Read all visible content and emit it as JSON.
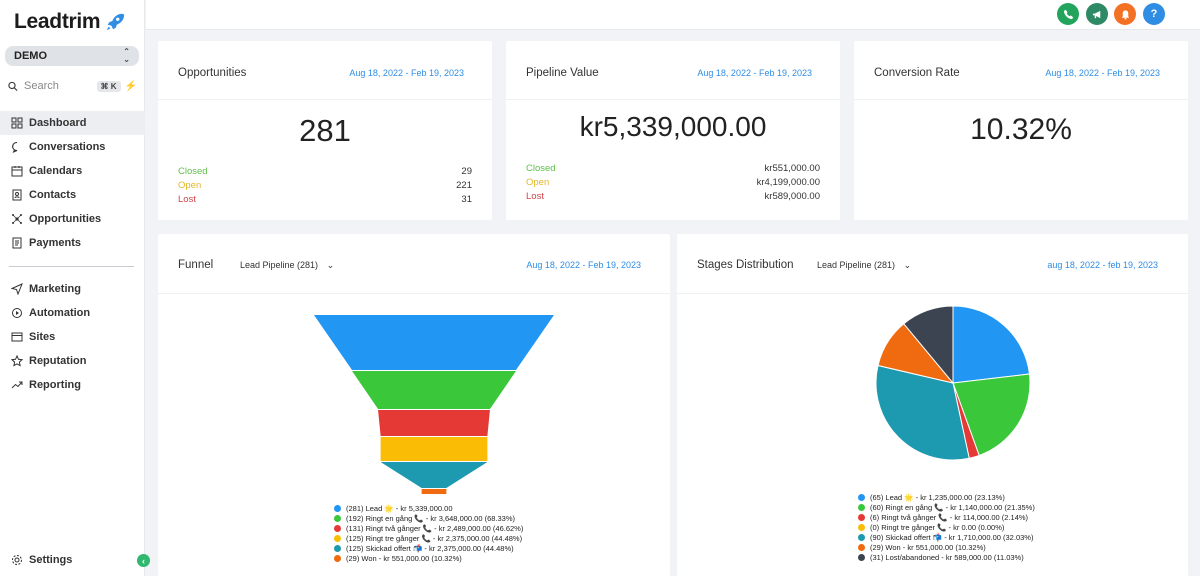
{
  "brand": {
    "name": "Leadtrim"
  },
  "location": {
    "label": "DEMO"
  },
  "search": {
    "placeholder": "Search",
    "shortcut": "⌘ K"
  },
  "sidebar": {
    "items": [
      {
        "label": "Dashboard",
        "icon": "dashboard-icon",
        "active": true
      },
      {
        "label": "Conversations",
        "icon": "chat-icon"
      },
      {
        "label": "Calendars",
        "icon": "calendar-icon"
      },
      {
        "label": "Contacts",
        "icon": "contacts-icon"
      },
      {
        "label": "Opportunities",
        "icon": "opportunities-icon"
      },
      {
        "label": "Payments",
        "icon": "payments-icon"
      }
    ],
    "items2": [
      {
        "label": "Marketing",
        "icon": "send-icon"
      },
      {
        "label": "Automation",
        "icon": "automation-icon"
      },
      {
        "label": "Sites",
        "icon": "sites-icon"
      },
      {
        "label": "Reputation",
        "icon": "star-icon"
      },
      {
        "label": "Reporting",
        "icon": "trend-icon"
      }
    ],
    "settings_label": "Settings"
  },
  "topbar": {
    "buttons": [
      {
        "icon": "phone-icon",
        "color": "#22a45d"
      },
      {
        "icon": "megaphone-icon",
        "color": "#2d8a64"
      },
      {
        "icon": "bell-icon",
        "color": "#f37125"
      },
      {
        "icon": "help-icon",
        "color": "#2f8de4",
        "text": "?"
      }
    ]
  },
  "cards": {
    "opportunities": {
      "title": "Opportunities",
      "date": "Aug 18, 2022 - Feb 19, 2023",
      "total": "281",
      "rows": [
        {
          "label": "Closed",
          "value": "29"
        },
        {
          "label": "Open",
          "value": "221"
        },
        {
          "label": "Lost",
          "value": "31"
        }
      ]
    },
    "pipeline": {
      "title": "Pipeline Value",
      "date": "Aug 18, 2022 - Feb 19, 2023",
      "total": "kr5,339,000.00",
      "rows": [
        {
          "label": "Closed",
          "value": "kr551,000.00"
        },
        {
          "label": "Open",
          "value": "kr4,199,000.00"
        },
        {
          "label": "Lost",
          "value": "kr589,000.00"
        }
      ]
    },
    "conversion": {
      "title": "Conversion Rate",
      "date": "Aug 18, 2022 - Feb 19, 2023",
      "total": "10.32%"
    },
    "funnel": {
      "title": "Funnel",
      "pipeline_select": "Lead Pipeline (281)",
      "date": "Aug 18, 2022 - Feb 19, 2023"
    },
    "stages": {
      "title": "Stages Distribution",
      "pipeline_select": "Lead Pipeline (281)",
      "date": "aug 18, 2022 - feb 19, 2023"
    }
  },
  "chart_data": [
    {
      "type": "funnel",
      "series": [
        {
          "name": "Lead",
          "count": 281,
          "value": 5339000,
          "color": "#2196f3",
          "label": "(281) Lead 🌟 - kr 5,339,000.00"
        },
        {
          "name": "Ringt en gång",
          "count": 192,
          "value": 3648000,
          "color": "#3ac73a",
          "label": "(192) Ringt en gång 📞 - kr 3,648,000.00 (68.33%)"
        },
        {
          "name": "Ringt två gånger",
          "count": 131,
          "value": 2489000,
          "color": "#e53935",
          "label": "(131) Ringt två gånger 📞 - kr 2,489,000.00 (46.62%)"
        },
        {
          "name": "Ringt tre gånger",
          "count": 125,
          "value": 2375000,
          "color": "#fbbc05",
          "label": "(125) Ringt tre gånger 📞 - kr 2,375,000.00 (44.48%)"
        },
        {
          "name": "Skickad offert",
          "count": 125,
          "value": 2375000,
          "color": "#1e9ab0",
          "label": "(125) Skickad offert 📬 - kr 2,375,000.00 (44.48%)"
        },
        {
          "name": "Won",
          "count": 29,
          "value": 551000,
          "color": "#f06a0f",
          "label": "(29) Won - kr 551,000.00 (10.32%)"
        }
      ]
    },
    {
      "type": "pie",
      "series": [
        {
          "name": "Lead",
          "count": 65,
          "percent": 23.13,
          "color": "#2196f3",
          "label": "(65) Lead 🌟 - kr 1,235,000.00 (23.13%)"
        },
        {
          "name": "Ringt en gång",
          "count": 60,
          "percent": 21.35,
          "color": "#3ac73a",
          "label": "(60) Ringt en gång 📞 - kr 1,140,000.00 (21.35%)"
        },
        {
          "name": "Ringt två gånger",
          "count": 6,
          "percent": 2.14,
          "color": "#e53935",
          "label": "(6) Ringt två gånger 📞 - kr 114,000.00 (2.14%)"
        },
        {
          "name": "Ringt tre gånger",
          "count": 0,
          "percent": 0.0,
          "color": "#fbbc05",
          "label": "(0) Ringt tre gånger 📞 - kr 0.00 (0.00%)"
        },
        {
          "name": "Skickad offert",
          "count": 90,
          "percent": 32.03,
          "color": "#1e9ab0",
          "label": "(90) Skickad offert 📬 - kr 1,710,000.00 (32.03%)"
        },
        {
          "name": "Won",
          "count": 29,
          "percent": 10.32,
          "color": "#f06a0f",
          "label": "(29) Won - kr 551,000.00 (10.32%)"
        },
        {
          "name": "Lost/abandoned",
          "count": 31,
          "percent": 11.03,
          "color": "#3d4451",
          "label": "(31) Lost/abandoned - kr 589,000.00 (11.03%)"
        }
      ]
    }
  ]
}
